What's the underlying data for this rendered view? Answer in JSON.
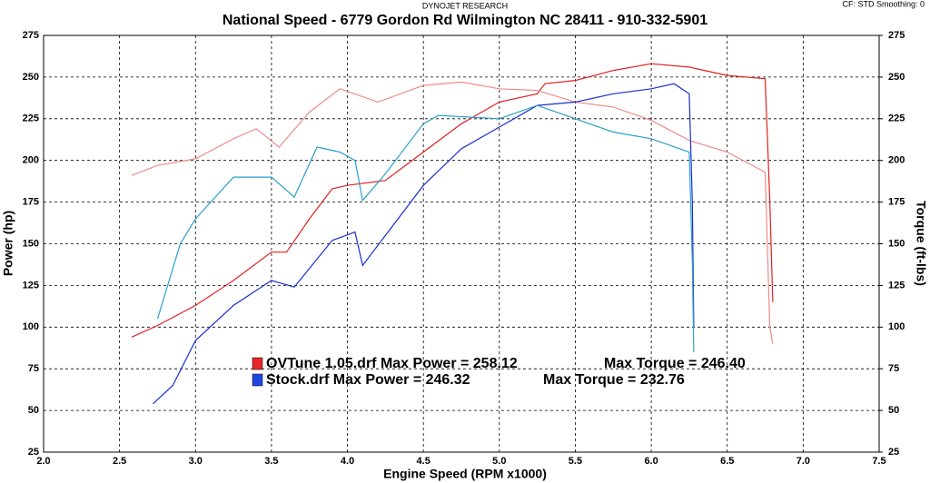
{
  "chart_data": {
    "type": "line",
    "header": "DYNOJET RESEARCH",
    "corner_note": "CF: STD  Smoothing: 0",
    "title": "National Speed - 6779 Gordon Rd Wilmington NC 28411 - 910-332-5901",
    "xlabel": "Engine Speed (RPM x1000)",
    "ylabel": "Power (hp)",
    "y2label": "Torque (ft-lbs)",
    "xlim": [
      2.0,
      7.5
    ],
    "xticks": [
      {
        "value": 2,
        "label": "2.0"
      },
      2.5,
      {
        "value": 3,
        "label": "3.0"
      },
      3.5,
      {
        "value": 4,
        "label": "4.0"
      },
      4.5,
      {
        "value": 5,
        "label": "5.0"
      },
      5.5,
      {
        "value": 6,
        "label": "6.0"
      },
      6.5,
      {
        "value": 7,
        "label": "7.0"
      },
      7.5
    ],
    "ylim": [
      25,
      275
    ],
    "yticks": [
      25,
      50,
      75,
      100,
      125,
      150,
      175,
      200,
      225,
      250,
      275
    ],
    "y2lim": [
      25,
      275
    ],
    "y2ticks": [
      25,
      50,
      75,
      100,
      125,
      150,
      175,
      200,
      225,
      250,
      275
    ],
    "grid": true,
    "legend": [
      {
        "color": "#e8252a",
        "text": "OVTune 1.05.drf Max Power = 258.12",
        "torque": "Max Torque = 246.40"
      },
      {
        "color": "#1f47e0",
        "text": "Stock.drf Max Power = 246.32",
        "torque": "Max Torque = 232.76"
      }
    ],
    "series": [
      {
        "color": "#e02020",
        "x": [
          2.58,
          2.75,
          3.0,
          3.25,
          3.5,
          3.6,
          3.75,
          3.9,
          4.0,
          4.25,
          4.5,
          4.75,
          5.0,
          5.25,
          5.3,
          5.5,
          5.75,
          6.0,
          6.25,
          6.5,
          6.75,
          6.78,
          6.8
        ],
        "values": [
          94,
          101,
          113,
          128,
          145,
          145,
          165,
          183,
          185,
          188,
          205,
          222,
          235,
          240,
          246,
          248,
          254,
          258,
          256,
          251,
          249,
          176,
          115
        ]
      },
      {
        "color": "#f08a8a",
        "axis": "y2",
        "x": [
          2.58,
          2.75,
          3.0,
          3.25,
          3.4,
          3.55,
          3.75,
          3.95,
          4.2,
          4.5,
          4.75,
          5.0,
          5.25,
          5.5,
          5.75,
          6.0,
          6.25,
          6.5,
          6.75,
          6.78,
          6.8
        ],
        "values": [
          191,
          197,
          201,
          213,
          219,
          208,
          229,
          243,
          235,
          245,
          247,
          243,
          242,
          235,
          232,
          224,
          212,
          205,
          193,
          100,
          90
        ]
      },
      {
        "color": "#1a2fd0",
        "x": [
          2.72,
          2.85,
          3.0,
          3.25,
          3.5,
          3.65,
          3.9,
          4.05,
          4.1,
          4.25,
          4.5,
          4.75,
          5.0,
          5.25,
          5.5,
          5.75,
          6.0,
          6.15,
          6.25,
          6.27,
          6.28
        ],
        "values": [
          54,
          65,
          92,
          113,
          128,
          124,
          152,
          157,
          137,
          155,
          185,
          207,
          220,
          233,
          235,
          240,
          243,
          246,
          240,
          175,
          100
        ]
      },
      {
        "color": "#2aa0c8",
        "axis": "y2",
        "x": [
          2.75,
          2.9,
          3.0,
          3.25,
          3.5,
          3.65,
          3.8,
          3.95,
          4.05,
          4.1,
          4.25,
          4.5,
          4.6,
          5.0,
          5.25,
          5.5,
          5.75,
          6.0,
          6.25,
          6.27,
          6.28
        ],
        "values": [
          105,
          150,
          165,
          190,
          190,
          178,
          208,
          205,
          200,
          176,
          192,
          222,
          227,
          225,
          233,
          225,
          217,
          213,
          205,
          140,
          85
        ]
      }
    ]
  }
}
